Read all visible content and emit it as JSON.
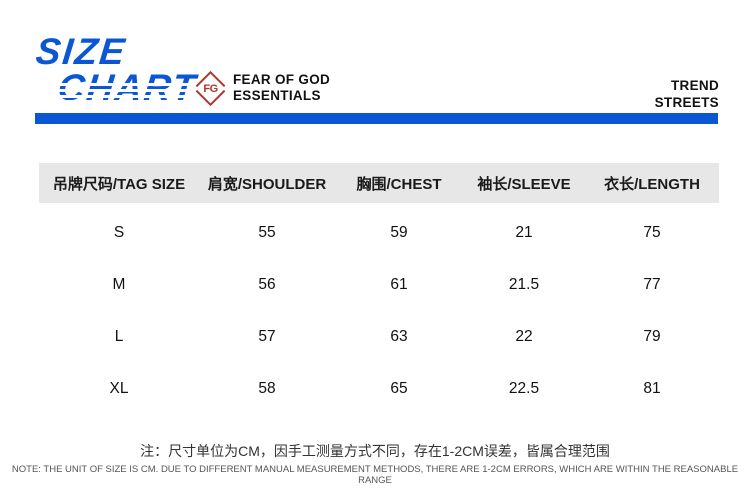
{
  "header": {
    "logo_line1": "SIZE",
    "logo_line2": "CHART",
    "fg_monogram": "FG",
    "brand_line1": "FEAR OF GOD",
    "brand_line2": "ESSENTIALS",
    "right_line1": "TREND",
    "right_line2": "STREETS"
  },
  "colors": {
    "accent_blue": "#0b57d3",
    "logo_red": "#b3342d",
    "table_header_bg": "#e7e7e7"
  },
  "chart_data": {
    "type": "table",
    "title": "SIZE CHART",
    "unit": "CM",
    "columns": [
      "吊牌尺码/TAG SIZE",
      "肩宽/SHOULDER",
      "胸围/CHEST",
      "袖长/SLEEVE",
      "衣长/LENGTH"
    ],
    "rows": [
      [
        "S",
        "55",
        "59",
        "21",
        "75"
      ],
      [
        "M",
        "56",
        "61",
        "21.5",
        "77"
      ],
      [
        "L",
        "57",
        "63",
        "22",
        "79"
      ],
      [
        "XL",
        "58",
        "65",
        "22.5",
        "81"
      ]
    ]
  },
  "notes": {
    "cn": "注：尺寸单位为CM，因手工测量方式不同，存在1-2CM误差，皆属合理范围",
    "en": "NOTE: THE UNIT OF SIZE IS CM. DUE TO DIFFERENT MANUAL MEASUREMENT METHODS, THERE ARE 1-2CM ERRORS, WHICH ARE WITHIN THE REASONABLE RANGE"
  }
}
